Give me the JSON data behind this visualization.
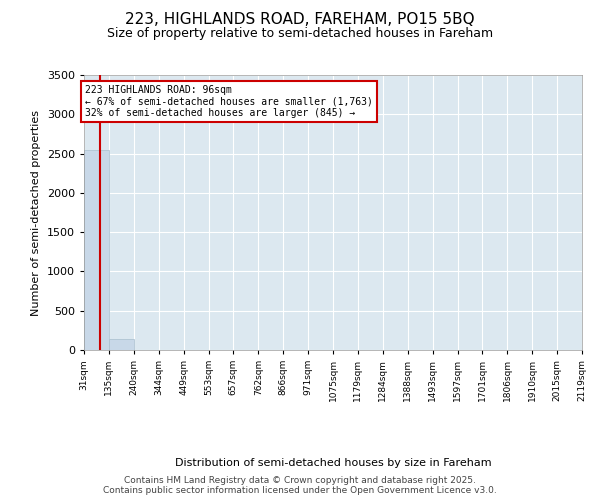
{
  "title": "223, HIGHLANDS ROAD, FAREHAM, PO15 5BQ",
  "subtitle": "Size of property relative to semi-detached houses in Fareham",
  "xlabel": "Distribution of semi-detached houses by size in Fareham",
  "ylabel": "Number of semi-detached properties",
  "bins": [
    31,
    135,
    240,
    344,
    449,
    553,
    657,
    762,
    866,
    971,
    1075,
    1179,
    1284,
    1388,
    1493,
    1597,
    1701,
    1806,
    1910,
    2015,
    2119
  ],
  "counts": [
    2540,
    135,
    0,
    0,
    0,
    0,
    0,
    0,
    0,
    0,
    0,
    0,
    0,
    0,
    0,
    0,
    0,
    0,
    0,
    0
  ],
  "bar_color": "#c8d8e8",
  "bar_edge_color": "#a8bece",
  "property_size": 96,
  "property_line_color": "#cc0000",
  "annotation_text": "223 HIGHLANDS ROAD: 96sqm\n← 67% of semi-detached houses are smaller (1,763)\n32% of semi-detached houses are larger (845) →",
  "annotation_box_facecolor": "#ffffff",
  "annotation_box_edgecolor": "#cc0000",
  "ylim": [
    0,
    3500
  ],
  "yticks": [
    0,
    500,
    1000,
    1500,
    2000,
    2500,
    3000,
    3500
  ],
  "plot_bg_color": "#dce8f0",
  "grid_color": "#ffffff",
  "footer": "Contains HM Land Registry data © Crown copyright and database right 2025.\nContains public sector information licensed under the Open Government Licence v3.0.",
  "tick_labels": [
    "31sqm",
    "135sqm",
    "240sqm",
    "344sqm",
    "449sqm",
    "553sqm",
    "657sqm",
    "762sqm",
    "866sqm",
    "971sqm",
    "1075sqm",
    "1179sqm",
    "1284sqm",
    "1388sqm",
    "1493sqm",
    "1597sqm",
    "1701sqm",
    "1806sqm",
    "1910sqm",
    "2015sqm",
    "2119sqm"
  ],
  "title_fontsize": 11,
  "subtitle_fontsize": 9,
  "ylabel_fontsize": 8,
  "xlabel_fontsize": 8,
  "ytick_fontsize": 8,
  "xtick_fontsize": 6.5,
  "annotation_fontsize": 7,
  "footer_fontsize": 6.5
}
